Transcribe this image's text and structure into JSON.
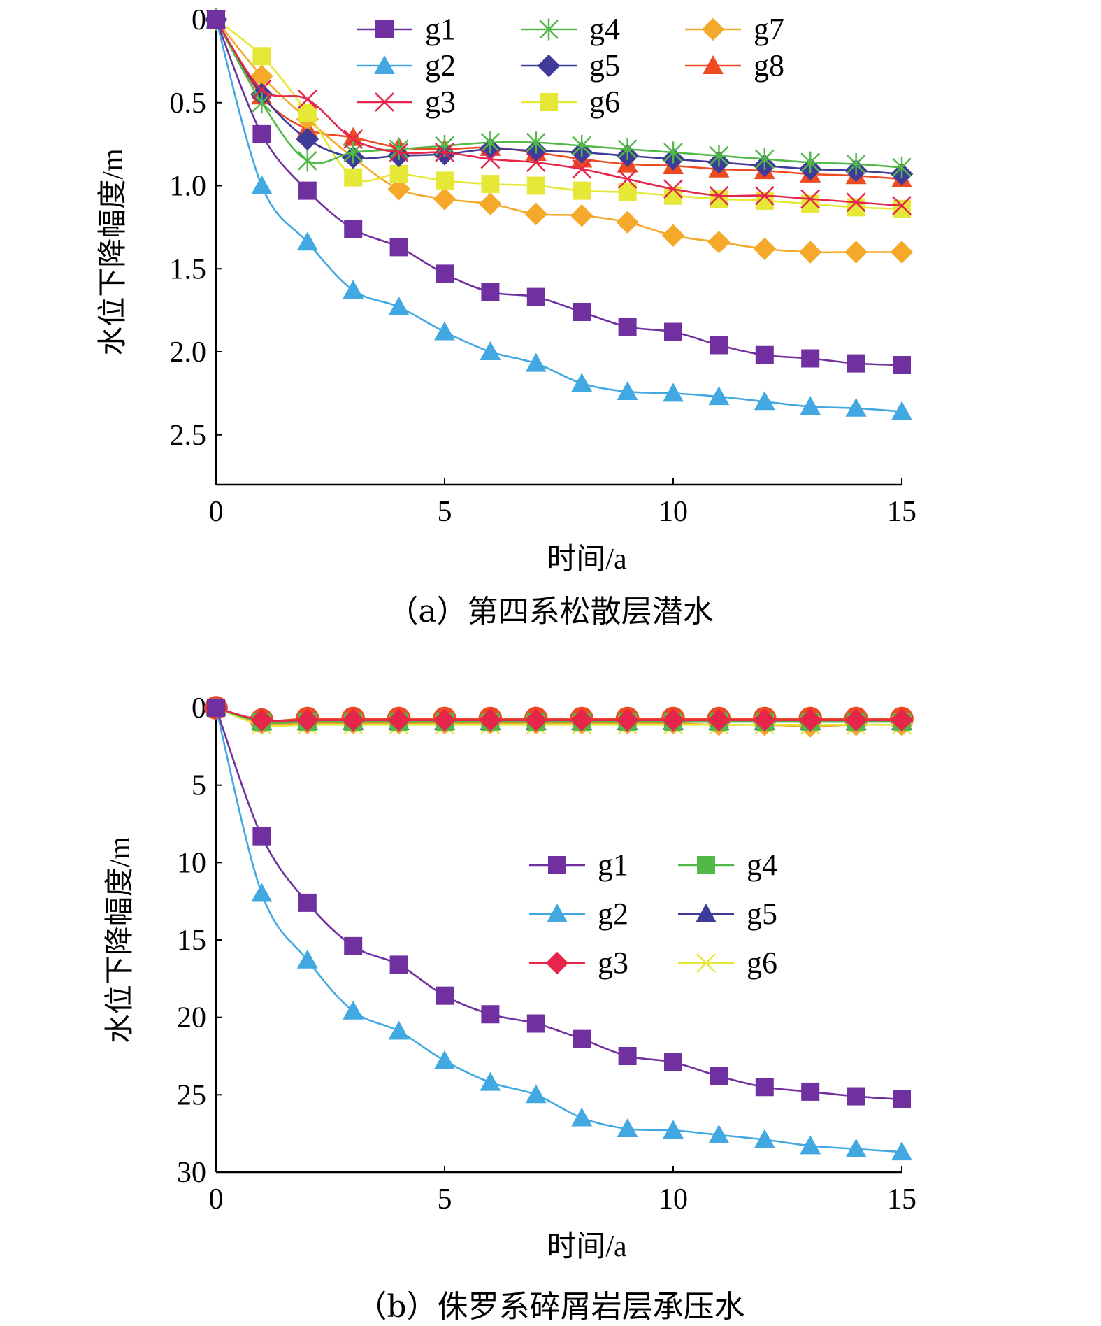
{
  "chart_data": [
    {
      "type": "line",
      "caption": "（a）第四系松散层潜水",
      "xlabel": "时间/a",
      "ylabel": "水位下降幅度/m",
      "xlim": [
        0,
        15
      ],
      "ylim": [
        0,
        2.8
      ],
      "y_inverted": true,
      "xticks": [
        0,
        5,
        10,
        15
      ],
      "yticks": [
        0,
        0.5,
        1.0,
        1.5,
        2.0,
        2.5
      ],
      "ytick_labels": [
        "0",
        "0.5",
        "1.0",
        "1.5",
        "2.0",
        "2.5"
      ],
      "grid": false,
      "legend_position": "top",
      "x": [
        0,
        1,
        2,
        3,
        4,
        5,
        6,
        7,
        8,
        9,
        10,
        11,
        12,
        13,
        14,
        15
      ],
      "series": [
        {
          "name": "g1",
          "color": "#7030A0",
          "marker": "square",
          "values": [
            0,
            0.69,
            1.03,
            1.26,
            1.37,
            1.53,
            1.64,
            1.67,
            1.76,
            1.85,
            1.88,
            1.96,
            2.02,
            2.04,
            2.07,
            2.08
          ]
        },
        {
          "name": "g2",
          "color": "#41A8E2",
          "marker": "triangle",
          "values": [
            0,
            1.0,
            1.34,
            1.63,
            1.73,
            1.88,
            2.0,
            2.07,
            2.19,
            2.24,
            2.25,
            2.27,
            2.3,
            2.33,
            2.34,
            2.36
          ]
        },
        {
          "name": "g3",
          "color": "#E5254A",
          "marker": "x",
          "values": [
            0,
            0.42,
            0.48,
            0.72,
            0.8,
            0.8,
            0.84,
            0.86,
            0.9,
            0.96,
            1.02,
            1.06,
            1.06,
            1.08,
            1.1,
            1.12
          ]
        },
        {
          "name": "g4",
          "color": "#52B848",
          "marker": "star",
          "values": [
            0,
            0.5,
            0.85,
            0.8,
            0.78,
            0.76,
            0.74,
            0.74,
            0.76,
            0.78,
            0.8,
            0.82,
            0.84,
            0.86,
            0.87,
            0.89
          ]
        },
        {
          "name": "g5",
          "color": "#3F3B99",
          "marker": "diamond",
          "values": [
            0,
            0.45,
            0.72,
            0.83,
            0.82,
            0.81,
            0.78,
            0.79,
            0.8,
            0.82,
            0.84,
            0.86,
            0.88,
            0.9,
            0.91,
            0.93
          ]
        },
        {
          "name": "g6",
          "color": "#E6E838",
          "marker": "square",
          "values": [
            0,
            0.22,
            0.56,
            0.95,
            0.93,
            0.97,
            0.99,
            1.0,
            1.03,
            1.04,
            1.06,
            1.08,
            1.09,
            1.11,
            1.13,
            1.14
          ]
        },
        {
          "name": "g7",
          "color": "#F4A92A",
          "marker": "diamond",
          "values": [
            0,
            0.34,
            0.6,
            0.83,
            1.02,
            1.08,
            1.11,
            1.17,
            1.18,
            1.22,
            1.3,
            1.34,
            1.38,
            1.4,
            1.4,
            1.4
          ]
        },
        {
          "name": "g8",
          "color": "#EE4A22",
          "marker": "triangle",
          "values": [
            0,
            0.46,
            0.66,
            0.71,
            0.77,
            0.78,
            0.77,
            0.8,
            0.84,
            0.87,
            0.88,
            0.9,
            0.91,
            0.93,
            0.94,
            0.96
          ]
        }
      ],
      "legend_columns": [
        [
          "g1",
          "g2",
          "g3"
        ],
        [
          "g4",
          "g5",
          "g6"
        ],
        [
          "g7",
          "g8"
        ]
      ]
    },
    {
      "type": "line",
      "caption": "（b）侏罗系碎屑岩层承压水",
      "xlabel": "时间/a",
      "ylabel": "水位下降幅度/m",
      "xlim": [
        0,
        15
      ],
      "ylim": [
        0,
        30
      ],
      "y_inverted": true,
      "xticks": [
        0,
        5,
        10,
        15
      ],
      "yticks": [
        0,
        5,
        10,
        15,
        20,
        25,
        30
      ],
      "ytick_labels": [
        "0",
        "5",
        "10",
        "15",
        "20",
        "25",
        "30"
      ],
      "grid": false,
      "legend_position": "center-right",
      "x": [
        0,
        1,
        2,
        3,
        4,
        5,
        6,
        7,
        8,
        9,
        10,
        11,
        12,
        13,
        14,
        15
      ],
      "series": [
        {
          "name": "g1",
          "color": "#7030A0",
          "marker": "square",
          "values": [
            0,
            8.3,
            12.6,
            15.4,
            16.6,
            18.6,
            19.8,
            20.4,
            21.4,
            22.5,
            22.9,
            23.8,
            24.5,
            24.8,
            25.1,
            25.3
          ]
        },
        {
          "name": "g2",
          "color": "#41A8E2",
          "marker": "triangle",
          "values": [
            0,
            12.0,
            16.3,
            19.6,
            20.9,
            22.8,
            24.2,
            25.0,
            26.5,
            27.2,
            27.3,
            27.6,
            27.9,
            28.3,
            28.5,
            28.7
          ]
        },
        {
          "name": "g3",
          "color": "#E5254A",
          "marker": "diamond",
          "values": [
            0,
            0.8,
            0.8,
            0.8,
            0.8,
            0.8,
            0.8,
            0.8,
            0.8,
            0.8,
            0.8,
            0.8,
            0.8,
            0.8,
            0.8,
            0.8
          ]
        },
        {
          "name": "g4",
          "color": "#52B848",
          "marker": "square",
          "values": [
            0,
            0.9,
            0.9,
            0.9,
            0.9,
            0.9,
            0.9,
            0.9,
            0.9,
            0.9,
            0.9,
            0.9,
            0.9,
            0.9,
            0.9,
            0.9
          ]
        },
        {
          "name": "g5",
          "color": "#3F3B99",
          "marker": "triangle",
          "values": [
            0,
            0.9,
            0.9,
            0.9,
            0.9,
            0.9,
            0.9,
            0.9,
            0.9,
            0.9,
            0.9,
            0.9,
            0.9,
            0.9,
            0.9,
            0.9
          ]
        },
        {
          "name": "g6",
          "color": "#E6E838",
          "marker": "x",
          "values": [
            0,
            1.1,
            1.1,
            1.1,
            1.1,
            1.1,
            1.1,
            1.1,
            1.1,
            1.1,
            1.1,
            1.1,
            1.1,
            1.1,
            1.1,
            1.1
          ]
        },
        {
          "name": "",
          "color": "#F4A92A",
          "marker": "diamond",
          "values": [
            0,
            1.0,
            1.0,
            1.0,
            1.0,
            1.0,
            1.0,
            1.0,
            1.0,
            1.0,
            1.0,
            1.1,
            1.1,
            1.2,
            1.1,
            1.1
          ]
        },
        {
          "name": "",
          "color": "#EE4A22",
          "marker": "circle",
          "values": [
            0,
            0.8,
            0.7,
            0.7,
            0.7,
            0.7,
            0.7,
            0.7,
            0.7,
            0.7,
            0.7,
            0.7,
            0.7,
            0.7,
            0.7,
            0.7
          ]
        }
      ],
      "legend_columns": [
        [
          "g1",
          "g2",
          "g3"
        ],
        [
          "g4",
          "g5",
          "g6"
        ]
      ]
    }
  ]
}
